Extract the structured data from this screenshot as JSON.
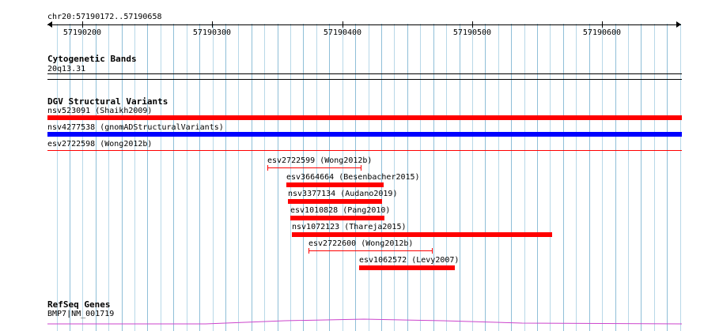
{
  "locus": "chr20:57190172..57190658",
  "scale": {
    "ticks": [
      "57190200",
      "57190300",
      "57190400",
      "57190500",
      "57190600"
    ]
  },
  "tracks": {
    "cytoband": {
      "title": "Cytogenetic Bands",
      "band_label": "20q13.31"
    },
    "dgv": {
      "title": "DGV Structural Variants",
      "features": [
        {
          "label": "nsv523091 (Shaikh2009)",
          "color": "#ff0000",
          "style": "thick"
        },
        {
          "label": "nsv4277538 (gnomADStructuralVariants)",
          "color": "#0000ff",
          "style": "thick"
        },
        {
          "label": "esv2722598 (Wong2012b)",
          "color": "#ff0000",
          "style": "thin"
        },
        {
          "label": "esv2722599 (Wong2012b)",
          "color": "#ff0000",
          "style": "whisker"
        },
        {
          "label": "esv3664664 (Besenbacher2015)",
          "color": "#ff0000",
          "style": "thick"
        },
        {
          "label": "nsv3377134 (Audano2019)",
          "color": "#ff0000",
          "style": "thick"
        },
        {
          "label": "esv1010828 (Pang2010)",
          "color": "#ff0000",
          "style": "thick"
        },
        {
          "label": "nsv1072123 (Thareja2015)",
          "color": "#ff0000",
          "style": "thick"
        },
        {
          "label": "esv2722600 (Wong2012b)",
          "color": "#ff0000",
          "style": "whisker"
        },
        {
          "label": "esv1062572 (Levy2007)",
          "color": "#ff0000",
          "style": "thick"
        }
      ]
    },
    "refseq": {
      "title": "RefSeq Genes",
      "gene_label": "BMP7|NM_001719",
      "color": "#cc44cc"
    }
  }
}
